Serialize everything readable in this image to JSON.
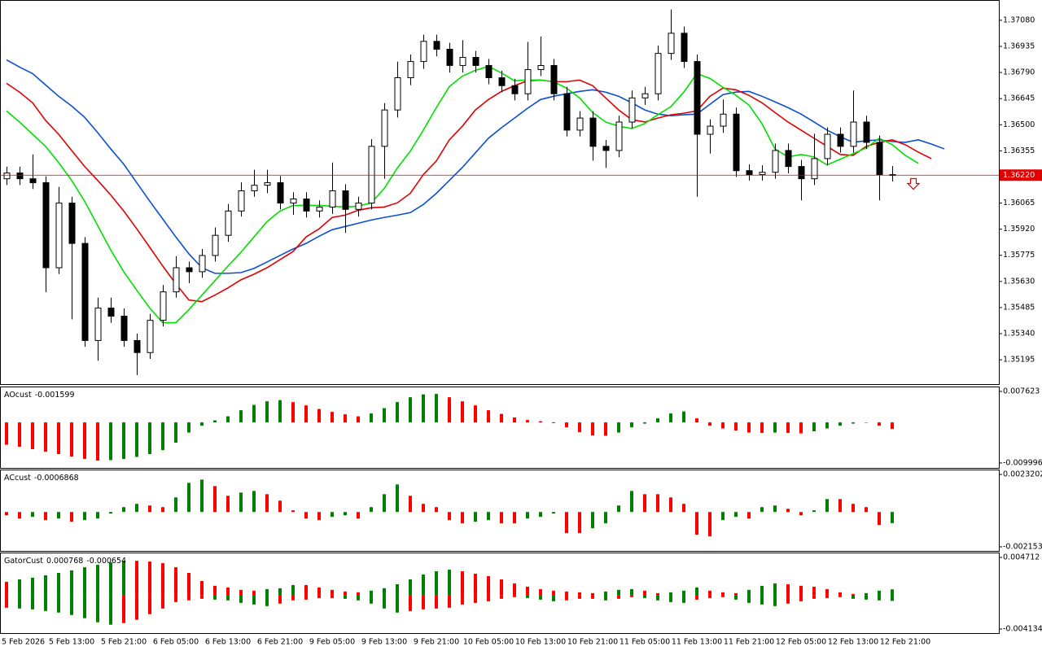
{
  "chart_data": [
    {
      "type": "candlestick",
      "categories": [
        "5 Feb 2026",
        null,
        null,
        null,
        null,
        "5 Feb 13:00",
        null,
        null,
        null,
        "5 Feb 21:00",
        null,
        null,
        null,
        "6 Feb 05:00",
        null,
        null,
        null,
        "6 Feb 13:00",
        null,
        null,
        null,
        "6 Feb 21:00",
        null,
        null,
        null,
        "9 Feb 05:00",
        null,
        null,
        null,
        "9 Feb 13:00",
        null,
        null,
        null,
        "9 Feb 21:00",
        null,
        null,
        null,
        "10 Feb 05:00",
        null,
        null,
        null,
        "10 Feb 13:00",
        null,
        null,
        null,
        "10 Feb 21:00",
        null,
        null,
        null,
        "11 Feb 05:00",
        null,
        null,
        null,
        "11 Feb 13:00",
        null,
        null,
        null,
        "11 Feb 21:00",
        null,
        null,
        null,
        "12 Feb 05:00",
        null,
        null,
        null,
        "12 Feb 13:00",
        null,
        null,
        null,
        "12 Feb 21:00",
        null,
        null,
        null
      ],
      "open": [
        1.362,
        1.36232,
        1.362,
        1.36178,
        1.35706,
        1.36065,
        1.35841,
        1.35302,
        1.35482,
        1.35437,
        1.35302,
        1.35235,
        1.35414,
        1.35572,
        1.35706,
        1.35684,
        1.35774,
        1.35886,
        1.36021,
        1.36133,
        1.36164,
        1.36178,
        1.36065,
        1.36088,
        1.36021,
        1.36043,
        1.36133,
        1.3603,
        1.36065,
        1.3638,
        1.36582,
        1.36761,
        1.36851,
        1.36963,
        1.36919,
        1.36829,
        1.36874,
        1.36829,
        1.36761,
        1.36717,
        1.36672,
        1.36806,
        1.36829,
        1.36672,
        1.3647,
        1.36537,
        1.3638,
        1.36357,
        1.36515,
        1.36649,
        1.36672,
        1.36896,
        1.37008,
        1.36851,
        1.36447,
        1.36492,
        1.36559,
        1.36245,
        1.36223,
        1.36236,
        1.36357,
        1.36268,
        1.362,
        1.36312,
        1.36447,
        1.3638,
        1.36515,
        1.36402,
        1.36223,
        null,
        null,
        null,
        null
      ],
      "high": [
        1.36267,
        1.36267,
        1.36335,
        1.36213,
        1.36155,
        1.361,
        1.35876,
        1.3554,
        1.3554,
        1.3548,
        1.3534,
        1.3545,
        1.3561,
        1.3577,
        1.3574,
        1.3581,
        1.3593,
        1.3606,
        1.3618,
        1.3625,
        1.3625,
        1.36215,
        1.36125,
        1.36125,
        1.3608,
        1.3629,
        1.3617,
        1.361,
        1.3642,
        1.3662,
        1.3685,
        1.3689,
        1.37,
        1.37,
        1.36955,
        1.3697,
        1.3691,
        1.36865,
        1.368,
        1.36755,
        1.3696,
        1.3699,
        1.36865,
        1.3671,
        1.36575,
        1.36575,
        1.36415,
        1.3655,
        1.3669,
        1.3671,
        1.3694,
        1.3714,
        1.37045,
        1.3689,
        1.3653,
        1.3664,
        1.36595,
        1.3628,
        1.36275,
        1.36395,
        1.36395,
        1.36305,
        1.3645,
        1.36485,
        1.36485,
        1.3669,
        1.3655,
        1.3644,
        1.3627,
        null,
        null,
        null,
        null
      ],
      "low": [
        1.36165,
        1.36165,
        1.36143,
        1.3557,
        1.35671,
        1.3542,
        1.35267,
        1.3519,
        1.354,
        1.35267,
        1.3511,
        1.352,
        1.3538,
        1.3554,
        1.3562,
        1.3565,
        1.3574,
        1.3585,
        1.3599,
        1.361,
        1.3612,
        1.3603,
        1.36,
        1.35985,
        1.35985,
        1.36005,
        1.359,
        1.3599,
        1.3603,
        1.362,
        1.3654,
        1.3672,
        1.3681,
        1.3688,
        1.3679,
        1.3679,
        1.3679,
        1.36725,
        1.3668,
        1.36635,
        1.36635,
        1.3677,
        1.36635,
        1.36435,
        1.36435,
        1.363,
        1.3626,
        1.3632,
        1.3648,
        1.3661,
        1.36635,
        1.3686,
        1.36815,
        1.361,
        1.3634,
        1.36455,
        1.3621,
        1.3619,
        1.3619,
        1.362,
        1.3623,
        1.3608,
        1.36165,
        1.36275,
        1.36345,
        1.36345,
        1.36365,
        1.3608,
        1.36185,
        null,
        null,
        null,
        null
      ],
      "close": [
        1.36232,
        1.362,
        1.36178,
        1.35706,
        1.36065,
        1.35841,
        1.35302,
        1.35482,
        1.35437,
        1.35302,
        1.35235,
        1.35414,
        1.35572,
        1.35706,
        1.35684,
        1.35774,
        1.35886,
        1.36021,
        1.36133,
        1.36164,
        1.36178,
        1.36065,
        1.36088,
        1.36021,
        1.36043,
        1.36133,
        1.3603,
        1.36065,
        1.3638,
        1.36582,
        1.36761,
        1.36851,
        1.36963,
        1.36919,
        1.36829,
        1.36874,
        1.36829,
        1.36761,
        1.36717,
        1.36672,
        1.36806,
        1.36829,
        1.36672,
        1.3647,
        1.36537,
        1.3638,
        1.36357,
        1.36515,
        1.36649,
        1.36672,
        1.36896,
        1.37008,
        1.36851,
        1.36447,
        1.36492,
        1.36559,
        1.36245,
        1.36223,
        1.36236,
        1.36357,
        1.36268,
        1.362,
        1.36312,
        1.36447,
        1.3638,
        1.36515,
        1.36402,
        1.36223,
        1.3622,
        null,
        null,
        null,
        null
      ],
      "up_color": "#ffffff",
      "down_color": "#000000",
      "wick_color": "#000000",
      "series": [
        {
          "color": "#0b4fd0",
          "values": [
            1.3686,
            1.3682,
            1.36784,
            1.36721,
            1.36658,
            1.36604,
            1.36541,
            1.36456,
            1.36366,
            1.36281,
            1.36178,
            1.36075,
            1.35976,
            1.35877,
            1.35783,
            1.35706,
            1.35675,
            1.35675,
            1.35679,
            1.35702,
            1.35738,
            1.35774,
            1.3581,
            1.35841,
            1.35881,
            1.35917,
            1.35935,
            1.35953,
            1.35971,
            1.35985,
            1.35998,
            1.36012,
            1.36057,
            1.36119,
            1.36191,
            1.36263,
            1.36344,
            1.36425,
            1.36483,
            1.36537,
            1.36591,
            1.3664,
            1.36658,
            1.36672,
            1.36685,
            1.36694,
            1.36681,
            1.36658,
            1.36622,
            1.36582,
            1.36559,
            1.3655,
            1.36555,
            1.36559,
            1.36613,
            1.36667,
            1.36681,
            1.36685,
            1.36658,
            1.36627,
            1.36595,
            1.36559,
            1.36515,
            1.3647,
            1.36434,
            1.36402,
            1.36411,
            1.36416,
            1.36407,
            1.36402,
            1.36416,
            1.36393,
            1.36366
          ]
        },
        {
          "color": "#e00000",
          "values": [
            1.3673,
            1.36681,
            1.36622,
            1.36524,
            1.36447,
            1.36357,
            1.36268,
            1.36191,
            1.3611,
            1.36021,
            1.35922,
            1.35819,
            1.35715,
            1.35617,
            1.35527,
            1.35518,
            1.35554,
            1.35594,
            1.35639,
            1.3567,
            1.35706,
            1.35751,
            1.35796,
            1.35877,
            1.35922,
            1.35985,
            1.35998,
            1.36025,
            1.36039,
            1.36043,
            1.36066,
            1.36119,
            1.36223,
            1.36299,
            1.36416,
            1.36492,
            1.36582,
            1.3664,
            1.36685,
            1.36717,
            1.36744,
            1.36748,
            1.36739,
            1.36739,
            1.36748,
            1.36717,
            1.36649,
            1.36582,
            1.36528,
            1.36515,
            1.36537,
            1.36555,
            1.36564,
            1.36577,
            1.36658,
            1.36703,
            1.36694,
            1.36663,
            1.36622,
            1.36568,
            1.36515,
            1.3647,
            1.36425,
            1.3638,
            1.36335,
            1.3633,
            1.3638,
            1.36402,
            1.36416,
            1.36389,
            1.36348,
            1.36312,
            null
          ]
        },
        {
          "color": "#00e000",
          "values": [
            1.36577,
            1.36515,
            1.36447,
            1.3638,
            1.3629,
            1.36191,
            1.36075,
            1.3594,
            1.35805,
            1.35684,
            1.35581,
            1.35482,
            1.35401,
            1.35401,
            1.35473,
            1.35554,
            1.35634,
            1.35715,
            1.35792,
            1.35877,
            1.35962,
            1.36021,
            1.36052,
            1.36052,
            1.36052,
            1.36048,
            1.36043,
            1.36048,
            1.36066,
            1.36146,
            1.36259,
            1.36353,
            1.3647,
            1.36595,
            1.36712,
            1.3677,
            1.36802,
            1.36824,
            1.36788,
            1.36744,
            1.36748,
            1.36748,
            1.36739,
            1.36703,
            1.36649,
            1.36568,
            1.36515,
            1.36492,
            1.36479,
            1.36506,
            1.36555,
            1.366,
            1.36681,
            1.36784,
            1.36757,
            1.36708,
            1.36663,
            1.36609,
            1.36506,
            1.36366,
            1.36321,
            1.36335,
            1.36321,
            1.36277,
            1.36308,
            1.36339,
            1.36371,
            1.36425,
            1.36389,
            1.3633,
            1.36286,
            null,
            null
          ]
        }
      ],
      "price_line": {
        "value": 1.3622,
        "label": "1.36220",
        "color": "#e00000"
      },
      "ylim": [
        1.3506,
        1.37188
      ],
      "yticks": [
        {
          "value": 1.3708,
          "label": "1.37080"
        },
        1.36935,
        {
          "value": 1.3679,
          "label": "1.36790"
        },
        1.36645,
        {
          "value": 1.365,
          "label": "1.36500"
        },
        1.36355,
        1.36065,
        {
          "value": 1.3592,
          "label": "1.35920"
        },
        1.35775,
        {
          "value": 1.3563,
          "label": "1.35630"
        },
        1.35485,
        {
          "value": 1.3534,
          "label": "1.35340"
        },
        1.35195
      ]
    },
    {
      "type": "bar",
      "title": "AOcust",
      "color_by": "rise",
      "up_color": "#008000",
      "down_color": "#ff0000",
      "series": [
        {
          "values": [
            -0.0055,
            -0.006,
            -0.0066,
            -0.0072,
            -0.0078,
            -0.0084,
            -0.009,
            -0.0094,
            -0.0093,
            -0.009,
            -0.0085,
            -0.0078,
            -0.0068,
            -0.005,
            -0.0025,
            -0.0008,
            0.0005,
            0.0015,
            0.003,
            0.0043,
            0.0052,
            0.0055,
            0.005,
            0.0042,
            0.0033,
            0.0026,
            0.002,
            0.0015,
            0.0022,
            0.0035,
            0.005,
            0.0062,
            0.0069,
            0.007,
            0.0062,
            0.0052,
            0.0042,
            0.003,
            0.0021,
            0.0012,
            0.0006,
            0.0003,
            -0.0002,
            -0.0012,
            -0.0024,
            -0.0032,
            -0.0033,
            -0.0025,
            -0.0012,
            -0.0003,
            0.001,
            0.0022,
            0.0027,
            0.001,
            -0.0008,
            -0.0015,
            -0.002,
            -0.0025,
            -0.0026,
            -0.0025,
            -0.0026,
            -0.0027,
            -0.0022,
            -0.0015,
            -0.0008,
            -0.0003,
            -0.0001,
            -0.0008,
            -0.001599
          ]
        }
      ],
      "ylim": [
        -0.011211,
        0.008636
      ],
      "yticks": [
        0.007623,
        -0.009996
      ]
    },
    {
      "type": "bar",
      "title": "ACcust",
      "color_by": "rise",
      "up_color": "#008000",
      "down_color": "#ff0000",
      "series": [
        {
          "values": [
            -0.0002,
            -0.0004,
            -0.0003,
            -0.0005,
            -0.0004,
            -0.0006,
            -0.0005,
            -0.0004,
            -0.0001,
            0.0003,
            0.0005,
            0.0004,
            0.0003,
            0.0009,
            0.0018,
            0.002,
            0.0016,
            0.001,
            0.0012,
            0.0013,
            0.0011,
            0.0007,
            0.0001,
            -0.0004,
            -0.0005,
            -0.0003,
            -0.0002,
            -0.0004,
            0.0003,
            0.0011,
            0.0017,
            0.001,
            0.0005,
            0.0003,
            -0.0005,
            -0.0007,
            -0.0006,
            -0.0005,
            -0.0007,
            -0.0007,
            -0.0004,
            -0.0003,
            -0.0001,
            -0.0013,
            -0.0013,
            -0.001,
            -0.0007,
            0.0004,
            0.0013,
            0.0011,
            0.0011,
            0.0009,
            0.0005,
            -0.0014,
            -0.0015,
            -0.0005,
            -0.0003,
            -0.0004,
            0.0003,
            0.0004,
            0.0002,
            -0.0002,
            0.0001,
            0.0008,
            0.0008,
            0.0005,
            0.0003,
            -0.0008,
            -0.0006868
          ]
        }
      ],
      "ylim": [
        -0.002407,
        0.002574
      ],
      "yticks": [
        0.0023202,
        {
          "value": -0.002153,
          "label": "-0.0021530"
        }
      ]
    },
    {
      "type": "bar",
      "title": "GatorCust",
      "color_by": "growth",
      "up_color": "#008000",
      "down_color": "#ff0000",
      "series": [
        {
          "values": [
            0.0017,
            0.002,
            0.0022,
            0.0025,
            0.0028,
            0.0031,
            0.0035,
            0.0038,
            0.0041,
            0.0043,
            0.0043,
            0.0042,
            0.004,
            0.0035,
            0.0028,
            0.0018,
            0.0012,
            0.001,
            0.0007,
            0.0006,
            0.0008,
            0.0009,
            0.0013,
            0.0013,
            0.001,
            0.0007,
            0.0005,
            0.0004,
            0.0006,
            0.0009,
            0.0014,
            0.002,
            0.0026,
            0.003,
            0.0032,
            0.003,
            0.0027,
            0.0024,
            0.002,
            0.0015,
            0.0011,
            0.0008,
            0.0006,
            0.0005,
            0.0004,
            0.0003,
            0.0005,
            0.0007,
            0.0008,
            0.0006,
            0.0003,
            0.0004,
            0.0006,
            0.001,
            0.0006,
            0.0004,
            0.0003,
            0.0007,
            0.0012,
            0.0015,
            0.0014,
            0.0012,
            0.0011,
            0.0008,
            0.0004,
            0.0002,
            0.0003,
            0.0006,
            0.000768
          ]
        },
        {
          "values": [
            -0.0015,
            -0.0016,
            -0.0017,
            -0.0019,
            -0.0021,
            -0.0024,
            -0.0028,
            -0.0033,
            -0.0036,
            -0.0034,
            -0.003,
            -0.0023,
            -0.0016,
            -0.0008,
            -0.0006,
            -0.0004,
            -0.0005,
            -0.0006,
            -0.0009,
            -0.0011,
            -0.0013,
            -0.001,
            -0.0006,
            -0.0005,
            -0.0003,
            -0.0003,
            -0.0004,
            -0.0006,
            -0.001,
            -0.0016,
            -0.0021,
            -0.0019,
            -0.0017,
            -0.0016,
            -0.0015,
            -0.0011,
            -0.0009,
            -0.0007,
            -0.0004,
            -0.0002,
            -0.0003,
            -0.0005,
            -0.0007,
            -0.0006,
            -0.0004,
            -0.0004,
            -0.0006,
            -0.0004,
            -0.0002,
            -0.0003,
            -0.0006,
            -0.0008,
            -0.0009,
            -0.0005,
            -0.0003,
            -0.0002,
            -0.0005,
            -0.0009,
            -0.0011,
            -0.0013,
            -0.001,
            -0.0007,
            -0.0004,
            -0.0003,
            -0.0002,
            -0.0004,
            -0.0005,
            -0.0006,
            -0.000654
          ]
        }
      ],
      "ylim": [
        -0.004637,
        0.005215
      ],
      "yticks": [
        0.004712,
        -0.004134
      ]
    }
  ]
}
